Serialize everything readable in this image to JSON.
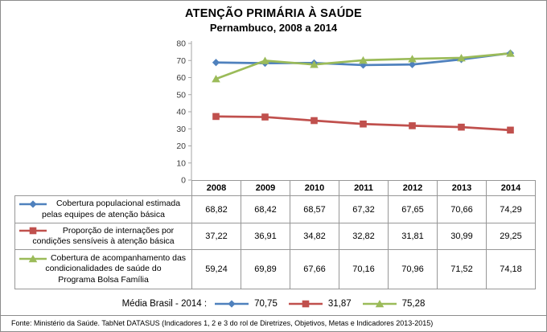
{
  "title": "ATENÇÃO PRIMÁRIA À SAÚDE",
  "subtitle": "Pernambuco, 2008 a 2014",
  "chart_data": {
    "type": "line",
    "categories": [
      "2008",
      "2009",
      "2010",
      "2011",
      "2012",
      "2013",
      "2014"
    ],
    "series": [
      {
        "name": "Cobertura populacional estimada pelas equipes de atenção básica",
        "name_lines": [
          "Cobertura populacional estimada",
          "pelas equipes de atenção básica"
        ],
        "color": "#4F81BD",
        "marker": "diamond",
        "values": [
          68.82,
          68.42,
          68.57,
          67.32,
          67.65,
          70.66,
          74.29
        ]
      },
      {
        "name": "Proporção de internações por condições sensíveis à atenção básica",
        "name_lines": [
          "Proporção de internações por",
          "condições sensíveis à atenção básica"
        ],
        "color": "#C0504D",
        "marker": "square",
        "values": [
          37.22,
          36.91,
          34.82,
          32.82,
          31.81,
          30.99,
          29.25
        ]
      },
      {
        "name": "Cobertura de acompanhamento das condicionalidades de saúde do Programa Bolsa Família",
        "name_lines": [
          "Cobertura de acompanhamento das",
          "condicionalidades de saúde do",
          "Programa Bolsa Família"
        ],
        "color": "#9BBB59",
        "marker": "triangle",
        "values": [
          59.24,
          69.89,
          67.66,
          70.16,
          70.96,
          71.52,
          74.18
        ]
      }
    ],
    "ylim": [
      0,
      80
    ],
    "ytick_step": 10,
    "grid": false,
    "legend_position": "data-table-left",
    "decimal_separator": ","
  },
  "brasil_legend": {
    "label": "Média Brasil - 2014 :",
    "entries": [
      {
        "value": 70.75,
        "color": "#4F81BD",
        "marker": "diamond"
      },
      {
        "value": 31.87,
        "color": "#C0504D",
        "marker": "square"
      },
      {
        "value": 75.28,
        "color": "#9BBB59",
        "marker": "triangle"
      }
    ]
  },
  "footer": "Fonte: Ministério da Saúde. TabNet DATASUS (Indicadores 1, 2 e 3 do rol de Diretrizes, Objetivos, Metas e Indicadores 2013-2015)",
  "colors": {
    "series1_blue": "#4F81BD",
    "series2_red": "#C0504D",
    "series3_green": "#9BBB59",
    "axis_gray": "#A6A6A6",
    "table_border_gray": "#979797"
  }
}
